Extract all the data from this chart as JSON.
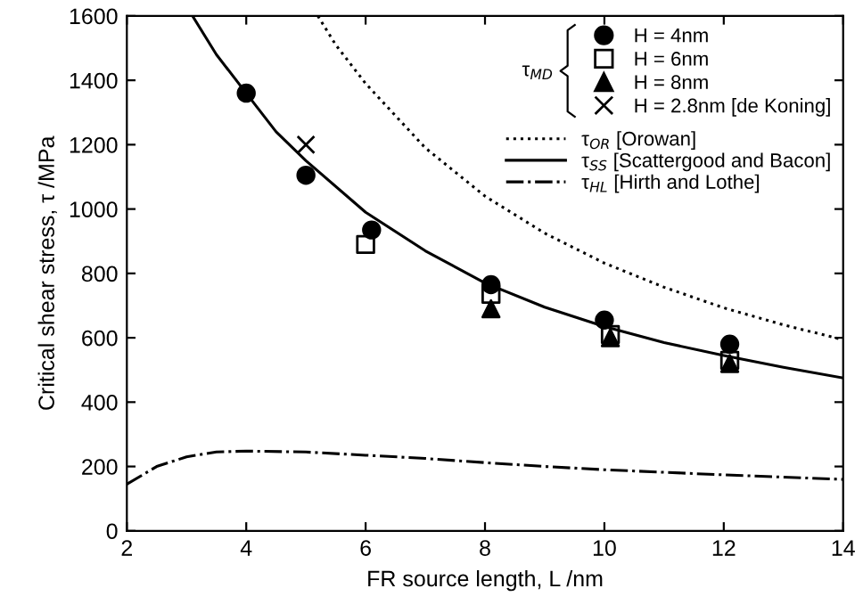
{
  "chart_data": {
    "type": "scatter",
    "xlabel": "FR source length, L /nm",
    "ylabel": "Critical shear stress, τ /MPa",
    "xlim": [
      2,
      14
    ],
    "xticks": [
      2,
      4,
      6,
      8,
      10,
      12,
      14
    ],
    "ylim": [
      0,
      1600
    ],
    "yticks": [
      0,
      200,
      400,
      600,
      800,
      1000,
      1200,
      1400,
      1600
    ],
    "grid": false,
    "legend": "top right",
    "legend_title": "τ$_{MD}$",
    "series": [
      {
        "name": "H = 4nm",
        "marker": "circle",
        "color": "#000000",
        "x": [
          4,
          5,
          6.1,
          8.1,
          10,
          12.1
        ],
        "values": [
          1360,
          1105,
          935,
          765,
          655,
          580
        ]
      },
      {
        "name": "H = 6nm",
        "marker": "square",
        "color": "#000000",
        "x": [
          6,
          8.1,
          10.1,
          12.1
        ],
        "values": [
          890,
          735,
          610,
          530
        ]
      },
      {
        "name": "H = 8nm",
        "marker": "triangle",
        "color": "#000000",
        "x": [
          8.1,
          10.1,
          12.1
        ],
        "values": [
          690,
          600,
          520
        ]
      },
      {
        "name": "H = 2.8nm [de Koning]",
        "marker": "cross",
        "color": "#000000",
        "x": [
          5
        ],
        "values": [
          1200
        ]
      },
      {
        "name": "τ$_{OR}$ [Orowan]",
        "type": "line",
        "line_style": "dotted",
        "color": "#000000",
        "x": [
          5.2,
          5.5,
          6,
          7,
          8,
          9,
          10,
          11,
          12,
          13,
          14
        ],
        "values": [
          1600,
          1510,
          1390,
          1190,
          1040,
          925,
          832,
          757,
          693,
          640,
          594
        ]
      },
      {
        "name": "τ$_{SS}$ [Scattergood and Bacon]",
        "type": "line",
        "line_style": "solid",
        "color": "#000000",
        "x": [
          3.1,
          3.5,
          4,
          4.5,
          5,
          6,
          7,
          8,
          9,
          10,
          11,
          12,
          13,
          14
        ],
        "values": [
          1600,
          1480,
          1360,
          1240,
          1150,
          990,
          870,
          770,
          695,
          635,
          585,
          545,
          508,
          475
        ]
      },
      {
        "name": "τ$_{HL}$ [Hirth and Lothe]",
        "type": "line",
        "line_style": "dashdot",
        "color": "#000000",
        "x": [
          2,
          2.5,
          3,
          3.5,
          4,
          5,
          6,
          7,
          8,
          9,
          10,
          11,
          12,
          13,
          14
        ],
        "values": [
          145,
          200,
          230,
          245,
          248,
          245,
          235,
          225,
          212,
          200,
          190,
          182,
          174,
          167,
          160
        ]
      }
    ]
  }
}
